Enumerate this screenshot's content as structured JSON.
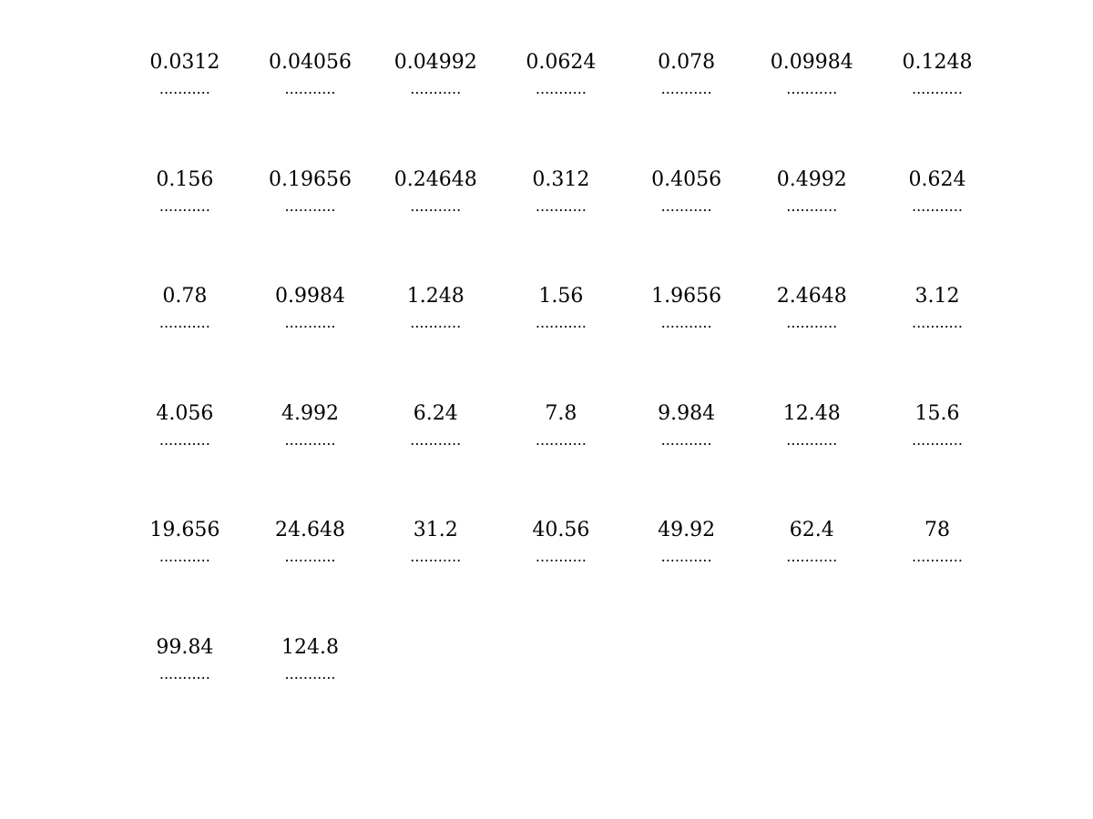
{
  "worksheet": {
    "leader": "...........",
    "values": [
      "0.0312",
      "0.04056",
      "0.04992",
      "0.0624",
      "0.078",
      "0.09984",
      "0.1248",
      "0.156",
      "0.19656",
      "0.24648",
      "0.312",
      "0.4056",
      "0.4992",
      "0.624",
      "0.78",
      "0.9984",
      "1.248",
      "1.56",
      "1.9656",
      "2.4648",
      "3.12",
      "4.056",
      "4.992",
      "6.24",
      "7.8",
      "9.984",
      "12.48",
      "15.6",
      "19.656",
      "24.648",
      "31.2",
      "40.56",
      "49.92",
      "62.4",
      "78",
      "99.84",
      "124.8"
    ]
  }
}
